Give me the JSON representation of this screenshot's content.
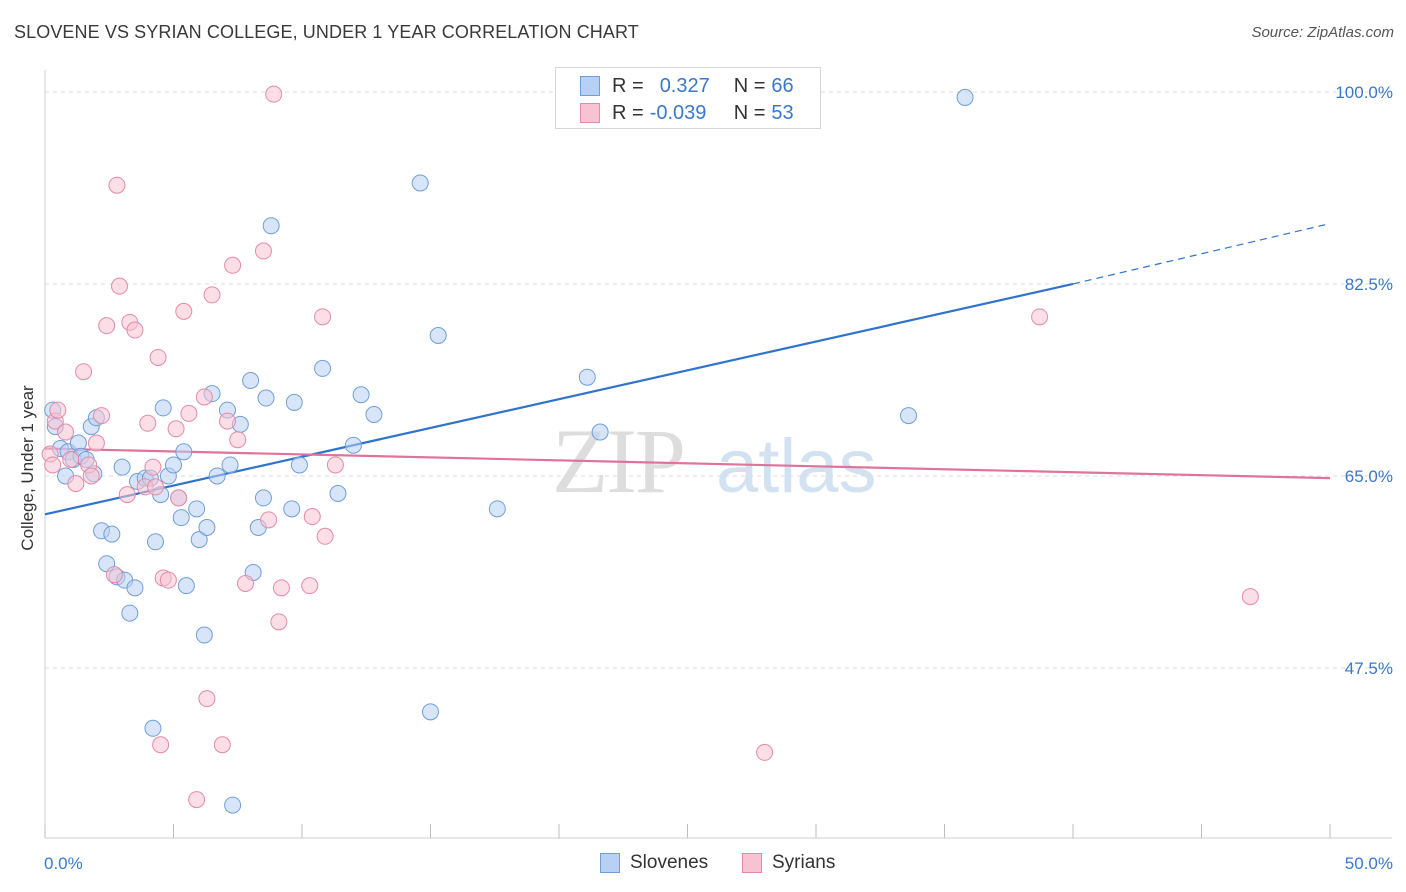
{
  "header": {
    "title": "SLOVENE VS SYRIAN COLLEGE, UNDER 1 YEAR CORRELATION CHART",
    "source": "Source: ZipAtlas.com"
  },
  "watermark": {
    "part1": "ZIP",
    "part2": "atlas"
  },
  "legend_top": {
    "rows": [
      {
        "r_label": "R =",
        "r_value": "0.327",
        "n_label": "N =",
        "n_value": "66"
      },
      {
        "r_label": "R =",
        "r_value": "-0.039",
        "n_label": "N =",
        "n_value": "53"
      }
    ]
  },
  "legend_bottom": [
    {
      "label": "Slovenes"
    },
    {
      "label": "Syrians"
    }
  ],
  "colors": {
    "slovenes_fill": "#b8d0f3",
    "slovenes_stroke": "#6f9fd8",
    "slovenes_line": "#2f73cc",
    "syrians_fill": "#f7c3d2",
    "syrians_stroke": "#e58aa8",
    "syrians_line": "#e0739b",
    "tick_label": "#3a78c9"
  },
  "chart_data": {
    "type": "scatter",
    "title": "SLOVENE VS SYRIAN COLLEGE, UNDER 1 YEAR CORRELATION CHART",
    "xlabel": "",
    "ylabel": "College, Under 1 year",
    "xlim": [
      0,
      50
    ],
    "ylim": [
      32,
      102
    ],
    "x_tick_labels": [
      "0.0%",
      "50.0%"
    ],
    "y_ticks": [
      47.5,
      65.0,
      82.5,
      100.0
    ],
    "y_tick_labels": [
      "47.5%",
      "65.0%",
      "82.5%",
      "100.0%"
    ],
    "grid": "horizontal dashed",
    "series": [
      {
        "name": "Slovenes",
        "r": 0.327,
        "n": 66,
        "trend": {
          "x0": 0,
          "y0": 61.5,
          "x1": 40,
          "y1": 82.5,
          "dashed_to_x": 50,
          "dashed_to_y": 88.0
        },
        "points": [
          [
            0.3,
            71.0
          ],
          [
            0.4,
            69.5
          ],
          [
            0.6,
            67.5
          ],
          [
            0.8,
            65.0
          ],
          [
            0.9,
            67.2
          ],
          [
            1.1,
            66.5
          ],
          [
            1.3,
            68.0
          ],
          [
            1.4,
            66.8
          ],
          [
            1.6,
            66.5
          ],
          [
            1.8,
            69.5
          ],
          [
            1.9,
            65.2
          ],
          [
            2.0,
            70.3
          ],
          [
            2.2,
            60.0
          ],
          [
            2.4,
            57.0
          ],
          [
            2.6,
            59.7
          ],
          [
            2.8,
            55.8
          ],
          [
            3.0,
            65.8
          ],
          [
            3.1,
            55.5
          ],
          [
            3.3,
            52.5
          ],
          [
            3.5,
            54.8
          ],
          [
            3.6,
            64.5
          ],
          [
            3.9,
            64.8
          ],
          [
            4.1,
            64.8
          ],
          [
            4.2,
            42.0
          ],
          [
            4.3,
            59.0
          ],
          [
            4.5,
            63.3
          ],
          [
            4.6,
            71.2
          ],
          [
            4.8,
            65.0
          ],
          [
            5.0,
            66.0
          ],
          [
            5.2,
            63.0
          ],
          [
            5.3,
            61.2
          ],
          [
            5.4,
            67.2
          ],
          [
            5.5,
            55.0
          ],
          [
            5.9,
            62.0
          ],
          [
            6.0,
            59.2
          ],
          [
            6.2,
            50.5
          ],
          [
            6.3,
            60.3
          ],
          [
            6.5,
            72.5
          ],
          [
            6.7,
            65.0
          ],
          [
            7.1,
            71.0
          ],
          [
            7.2,
            66.0
          ],
          [
            7.3,
            35.0
          ],
          [
            7.6,
            69.7
          ],
          [
            8.0,
            73.7
          ],
          [
            8.1,
            56.2
          ],
          [
            8.3,
            60.3
          ],
          [
            8.5,
            63.0
          ],
          [
            8.6,
            72.1
          ],
          [
            8.8,
            87.8
          ],
          [
            9.6,
            62.0
          ],
          [
            9.7,
            71.7
          ],
          [
            9.9,
            66.0
          ],
          [
            10.8,
            74.8
          ],
          [
            11.4,
            63.4
          ],
          [
            12.0,
            67.8
          ],
          [
            12.3,
            72.4
          ],
          [
            12.8,
            70.6
          ],
          [
            14.6,
            91.7
          ],
          [
            15.0,
            43.5
          ],
          [
            15.3,
            77.8
          ],
          [
            17.6,
            62.0
          ],
          [
            21.1,
            74.0
          ],
          [
            21.6,
            69.0
          ],
          [
            23.0,
            99.8
          ],
          [
            33.6,
            70.5
          ],
          [
            35.8,
            99.5
          ]
        ]
      },
      {
        "name": "Syrians",
        "r": -0.039,
        "n": 53,
        "trend": {
          "x0": 0,
          "y0": 67.5,
          "x1": 50,
          "y1": 64.8
        },
        "points": [
          [
            0.2,
            67.0
          ],
          [
            0.3,
            66.0
          ],
          [
            0.4,
            70.0
          ],
          [
            0.5,
            71.0
          ],
          [
            0.8,
            69.0
          ],
          [
            1.0,
            66.5
          ],
          [
            1.2,
            64.3
          ],
          [
            1.5,
            74.5
          ],
          [
            1.7,
            66.0
          ],
          [
            1.8,
            65.0
          ],
          [
            2.0,
            68.0
          ],
          [
            2.2,
            70.5
          ],
          [
            2.4,
            78.7
          ],
          [
            2.7,
            56.0
          ],
          [
            2.8,
            91.5
          ],
          [
            2.9,
            82.3
          ],
          [
            3.2,
            63.3
          ],
          [
            3.3,
            79.0
          ],
          [
            3.5,
            78.3
          ],
          [
            3.9,
            64.0
          ],
          [
            4.0,
            69.8
          ],
          [
            4.2,
            65.8
          ],
          [
            4.3,
            64.0
          ],
          [
            4.4,
            75.8
          ],
          [
            4.5,
            40.5
          ],
          [
            4.6,
            55.7
          ],
          [
            4.8,
            55.5
          ],
          [
            5.1,
            69.3
          ],
          [
            5.2,
            63.0
          ],
          [
            5.4,
            80.0
          ],
          [
            5.6,
            70.7
          ],
          [
            5.9,
            35.5
          ],
          [
            6.2,
            72.2
          ],
          [
            6.3,
            44.7
          ],
          [
            6.5,
            81.5
          ],
          [
            6.9,
            40.5
          ],
          [
            7.1,
            70.0
          ],
          [
            7.3,
            84.2
          ],
          [
            7.5,
            68.3
          ],
          [
            7.8,
            55.2
          ],
          [
            8.5,
            85.5
          ],
          [
            8.7,
            61.0
          ],
          [
            8.9,
            99.8
          ],
          [
            9.1,
            51.7
          ],
          [
            9.2,
            54.8
          ],
          [
            10.3,
            55.0
          ],
          [
            10.4,
            61.3
          ],
          [
            10.8,
            79.5
          ],
          [
            10.9,
            59.5
          ],
          [
            11.3,
            66.0
          ],
          [
            28.0,
            39.8
          ],
          [
            38.7,
            79.5
          ],
          [
            46.9,
            54.0
          ]
        ]
      }
    ]
  }
}
